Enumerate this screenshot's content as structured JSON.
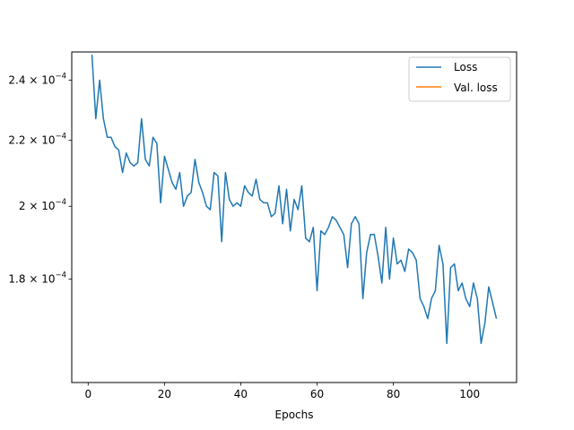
{
  "chart_data": {
    "type": "line",
    "title": "",
    "xlabel": "Epochs",
    "ylabel": "",
    "xlim": [
      -4.3,
      112.3
    ],
    "ylim": [
      0.000155,
      0.00025
    ],
    "yscale": "log",
    "grid": false,
    "legend_position": "top-right",
    "xticks": [
      0,
      20,
      40,
      60,
      80,
      100
    ],
    "xtick_labels": [
      "0",
      "20",
      "40",
      "60",
      "80",
      "100"
    ],
    "yticks": [
      0.00018,
      0.0002,
      0.00022,
      0.00024
    ],
    "ytick_labels": [
      {
        "base": "1.8 × 10",
        "exp": "−4"
      },
      {
        "base": "2 × 10",
        "exp": "−4"
      },
      {
        "base": "2.2 × 10",
        "exp": "−4"
      },
      {
        "base": "2.4 × 10",
        "exp": "−4"
      }
    ],
    "series": [
      {
        "name": "Loss",
        "color": "#1f77b4",
        "x": [
          1,
          2,
          3,
          4,
          5,
          6,
          7,
          8,
          9,
          10,
          11,
          12,
          13,
          14,
          15,
          16,
          17,
          18,
          19,
          20,
          21,
          22,
          23,
          24,
          25,
          26,
          27,
          28,
          29,
          30,
          31,
          32,
          33,
          34,
          35,
          36,
          37,
          38,
          39,
          40,
          41,
          42,
          43,
          44,
          45,
          46,
          47,
          48,
          49,
          50,
          51,
          52,
          53,
          54,
          55,
          56,
          57,
          58,
          59,
          60,
          61,
          62,
          63,
          64,
          65,
          66,
          67,
          68,
          69,
          70,
          71,
          72,
          73,
          74,
          75,
          76,
          77,
          78,
          79,
          80,
          81,
          82,
          83,
          84,
          85,
          86,
          87,
          88,
          89,
          90,
          91,
          92,
          93,
          94,
          95,
          96,
          97,
          98,
          99,
          100,
          101,
          102,
          103,
          104,
          105,
          106,
          107
        ],
        "y": [
          0.000249,
          0.000227,
          0.00024,
          0.000227,
          0.000221,
          0.000221,
          0.000218,
          0.000217,
          0.00021,
          0.000216,
          0.000213,
          0.000212,
          0.000213,
          0.000227,
          0.000214,
          0.000212,
          0.000221,
          0.000219,
          0.000201,
          0.000215,
          0.000211,
          0.000207,
          0.000205,
          0.00021,
          0.0002,
          0.000203,
          0.000204,
          0.000214,
          0.000207,
          0.000204,
          0.0002,
          0.000199,
          0.00021,
          0.000209,
          0.00019,
          0.00021,
          0.000202,
          0.0002,
          0.000201,
          0.0002,
          0.000206,
          0.000204,
          0.000203,
          0.000208,
          0.000202,
          0.000201,
          0.000201,
          0.000197,
          0.000198,
          0.000206,
          0.000195,
          0.000205,
          0.000193,
          0.000202,
          0.000199,
          0.000206,
          0.000191,
          0.00019,
          0.000194,
          0.000177,
          0.000193,
          0.000192,
          0.000194,
          0.000197,
          0.000196,
          0.000194,
          0.000192,
          0.000183,
          0.000195,
          0.000197,
          0.000195,
          0.000175,
          0.000187,
          0.000192,
          0.000192,
          0.000186,
          0.000179,
          0.000194,
          0.00018,
          0.000191,
          0.000184,
          0.000185,
          0.000182,
          0.000188,
          0.000187,
          0.000185,
          0.000175,
          0.000173,
          0.00017,
          0.000175,
          0.000177,
          0.000189,
          0.000184,
          0.000164,
          0.000183,
          0.000184,
          0.000177,
          0.000179,
          0.000175,
          0.000173,
          0.000179,
          0.000175,
          0.000164,
          0.000169,
          0.000178,
          0.000174,
          0.00017
        ]
      },
      {
        "name": "Val. loss",
        "color": "#ff7f0e",
        "x": [],
        "y": []
      }
    ]
  }
}
